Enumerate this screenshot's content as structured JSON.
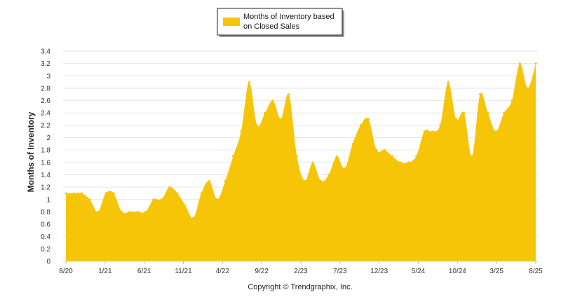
{
  "chart_data": {
    "type": "area",
    "title": "",
    "xlabel": "",
    "ylabel": "Months of Inventory",
    "ylim": [
      0,
      3.4
    ],
    "yticks": [
      "0",
      "0.2",
      "0.4",
      "0.6",
      "0.8",
      "1",
      "1.2",
      "1.4",
      "1.6",
      "1.8",
      "2",
      "2.2",
      "2.4",
      "2.6",
      "2.8",
      "3",
      "3.2",
      "3.4"
    ],
    "xtick_labels": [
      "8/20",
      "1/21",
      "6/21",
      "11/21",
      "4/22",
      "9/22",
      "2/23",
      "7/23",
      "12/23",
      "5/24",
      "10/24",
      "3/25",
      "8/25"
    ],
    "grid": "horizontal",
    "legend": {
      "position": "top-center",
      "line1": "Months of Inventory based",
      "line2": "on Closed Sales"
    },
    "series": [
      {
        "color": "#F7C507",
        "values": [
          1.1,
          1.1,
          1.1,
          1.0,
          0.8,
          1.1,
          1.1,
          0.8,
          0.8,
          0.8,
          0.8,
          1.0,
          1.0,
          1.2,
          1.1,
          0.9,
          0.7,
          1.1,
          1.3,
          1.0,
          1.3,
          1.7,
          2.1,
          2.9,
          2.2,
          2.4,
          2.6,
          2.3,
          2.7,
          1.7,
          1.3,
          1.6,
          1.3,
          1.4,
          1.7,
          1.5,
          1.9,
          2.2,
          2.3,
          1.8,
          1.8,
          1.7,
          1.6,
          1.6,
          1.7,
          2.1,
          2.1,
          2.2,
          2.9,
          2.3,
          2.4,
          1.7,
          2.7,
          2.4,
          2.1,
          2.4,
          2.6,
          3.2,
          2.8,
          3.2
        ]
      }
    ]
  },
  "footer": {
    "copyright": "Copyright © Trendgraphix, Inc."
  }
}
